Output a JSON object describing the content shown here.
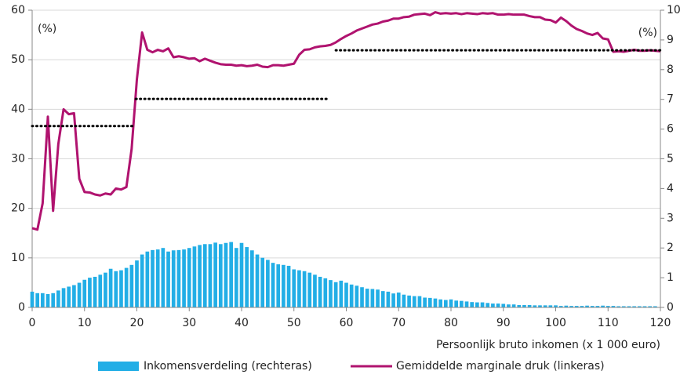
{
  "chart_data": {
    "type": "combo",
    "x_axis_label": "Persoonlijk bruto inkomen (x 1 000 euro)",
    "y_unit_label": "(%)",
    "y2_unit_label": "(%)",
    "xlim": [
      0,
      120
    ],
    "xticks": [
      0,
      10,
      20,
      30,
      40,
      50,
      60,
      70,
      80,
      90,
      100,
      110,
      120
    ],
    "ylim": [
      0,
      60
    ],
    "yticks": [
      0,
      10,
      20,
      30,
      40,
      50,
      60
    ],
    "y2lim": [
      0,
      10
    ],
    "y2ticks": [
      0,
      1,
      2,
      3,
      4,
      5,
      6,
      7,
      8,
      9,
      10
    ],
    "grid": true,
    "series": [
      {
        "name": "Inkomensverdeling (rechteras)",
        "type": "bar",
        "axis": "y2",
        "color": "#22aee6",
        "x": [
          0,
          1,
          2,
          3,
          4,
          5,
          6,
          7,
          8,
          9,
          10,
          11,
          12,
          13,
          14,
          15,
          16,
          17,
          18,
          19,
          20,
          21,
          22,
          23,
          24,
          25,
          26,
          27,
          28,
          29,
          30,
          31,
          32,
          33,
          34,
          35,
          36,
          37,
          38,
          39,
          40,
          41,
          42,
          43,
          44,
          45,
          46,
          47,
          48,
          49,
          50,
          51,
          52,
          53,
          54,
          55,
          56,
          57,
          58,
          59,
          60,
          61,
          62,
          63,
          64,
          65,
          66,
          67,
          68,
          69,
          70,
          71,
          72,
          73,
          74,
          75,
          76,
          77,
          78,
          79,
          80,
          81,
          82,
          83,
          84,
          85,
          86,
          87,
          88,
          89,
          90,
          91,
          92,
          93,
          94,
          95,
          96,
          97,
          98,
          99,
          100,
          101,
          102,
          103,
          104,
          105,
          106,
          107,
          108,
          109,
          110,
          111,
          112,
          113,
          114,
          115,
          116,
          117,
          118,
          119
        ],
        "values": [
          0.53,
          0.48,
          0.48,
          0.45,
          0.48,
          0.57,
          0.65,
          0.7,
          0.75,
          0.83,
          0.93,
          1.0,
          1.03,
          1.1,
          1.17,
          1.3,
          1.22,
          1.25,
          1.33,
          1.43,
          1.58,
          1.78,
          1.88,
          1.93,
          1.95,
          2.0,
          1.88,
          1.92,
          1.93,
          1.95,
          2.0,
          2.05,
          2.1,
          2.13,
          2.13,
          2.18,
          2.13,
          2.17,
          2.2,
          2.0,
          2.17,
          2.03,
          1.92,
          1.78,
          1.67,
          1.6,
          1.5,
          1.45,
          1.43,
          1.4,
          1.28,
          1.25,
          1.22,
          1.17,
          1.1,
          1.03,
          0.98,
          0.92,
          0.85,
          0.9,
          0.83,
          0.77,
          0.73,
          0.68,
          0.63,
          0.62,
          0.6,
          0.55,
          0.53,
          0.47,
          0.5,
          0.43,
          0.4,
          0.38,
          0.38,
          0.33,
          0.32,
          0.3,
          0.27,
          0.25,
          0.27,
          0.23,
          0.22,
          0.2,
          0.18,
          0.17,
          0.17,
          0.15,
          0.13,
          0.13,
          0.12,
          0.1,
          0.1,
          0.08,
          0.08,
          0.08,
          0.07,
          0.07,
          0.07,
          0.07,
          0.07,
          0.05,
          0.06,
          0.05,
          0.05,
          0.05,
          0.06,
          0.05,
          0.05,
          0.06,
          0.05,
          0.05,
          0.04,
          0.04,
          0.04,
          0.04,
          0.04,
          0.04,
          0.04,
          0.04
        ]
      },
      {
        "name": "Gemiddelde marginale druk (linkeras)",
        "type": "line",
        "color": "#b0136f",
        "x": [
          0,
          1,
          2,
          3,
          4,
          5,
          6,
          7,
          8,
          9,
          10,
          11,
          12,
          13,
          14,
          15,
          16,
          17,
          18,
          19,
          20,
          21,
          22,
          23,
          24,
          25,
          26,
          27,
          28,
          29,
          30,
          31,
          32,
          33,
          34,
          35,
          36,
          37,
          38,
          39,
          40,
          41,
          42,
          43,
          44,
          45,
          46,
          47,
          48,
          49,
          50,
          51,
          52,
          53,
          54,
          55,
          56,
          57,
          58,
          59,
          60,
          61,
          62,
          63,
          64,
          65,
          66,
          67,
          68,
          69,
          70,
          71,
          72,
          73,
          74,
          75,
          76,
          77,
          78,
          79,
          80,
          81,
          82,
          83,
          84,
          85,
          86,
          87,
          88,
          89,
          90,
          91,
          92,
          93,
          94,
          95,
          96,
          97,
          98,
          99,
          100,
          101,
          102,
          103,
          104,
          105,
          106,
          107,
          108,
          109,
          110,
          111,
          112,
          113,
          114,
          115,
          116,
          117,
          118,
          119,
          120
        ],
        "values": [
          16,
          15.7,
          21,
          38.5,
          19.5,
          33,
          40,
          39,
          39.2,
          26,
          23.3,
          23.2,
          22.8,
          22.6,
          23,
          22.8,
          24,
          23.8,
          24.3,
          32,
          46,
          55.5,
          52,
          51.5,
          52,
          51.7,
          52.3,
          50.5,
          50.7,
          50.5,
          50.2,
          50.3,
          49.7,
          50.2,
          49.8,
          49.4,
          49.1,
          49,
          49,
          48.8,
          48.9,
          48.7,
          48.8,
          49,
          48.6,
          48.5,
          48.9,
          48.9,
          48.8,
          49,
          49.2,
          51,
          52,
          52.1,
          52.5,
          52.7,
          52.8,
          53,
          53.5,
          54.2,
          54.8,
          55.3,
          55.9,
          56.3,
          56.7,
          57.1,
          57.3,
          57.7,
          57.9,
          58.3,
          58.3,
          58.6,
          58.7,
          59.1,
          59.2,
          59.3,
          59,
          59.6,
          59.3,
          59.4,
          59.3,
          59.4,
          59.2,
          59.4,
          59.3,
          59.2,
          59.4,
          59.3,
          59.4,
          59.1,
          59.1,
          59.2,
          59.1,
          59.1,
          59.1,
          58.8,
          58.6,
          58.6,
          58.1,
          58,
          57.5,
          58.5,
          57.8,
          56.9,
          56.2,
          55.8,
          55.3,
          55,
          55.4,
          54.3,
          54.1,
          51.6,
          51.7,
          51.6,
          51.8,
          52,
          51.8,
          51.8,
          51.9,
          51.8,
          51.7
        ]
      }
    ],
    "reference_lines": [
      {
        "x": [
          0,
          19.2
        ],
        "y": 36.6
      },
      {
        "x": [
          19.8,
          56.3
        ],
        "y": 42.1
      },
      {
        "x": [
          58,
          120
        ],
        "y": 51.9
      }
    ]
  }
}
